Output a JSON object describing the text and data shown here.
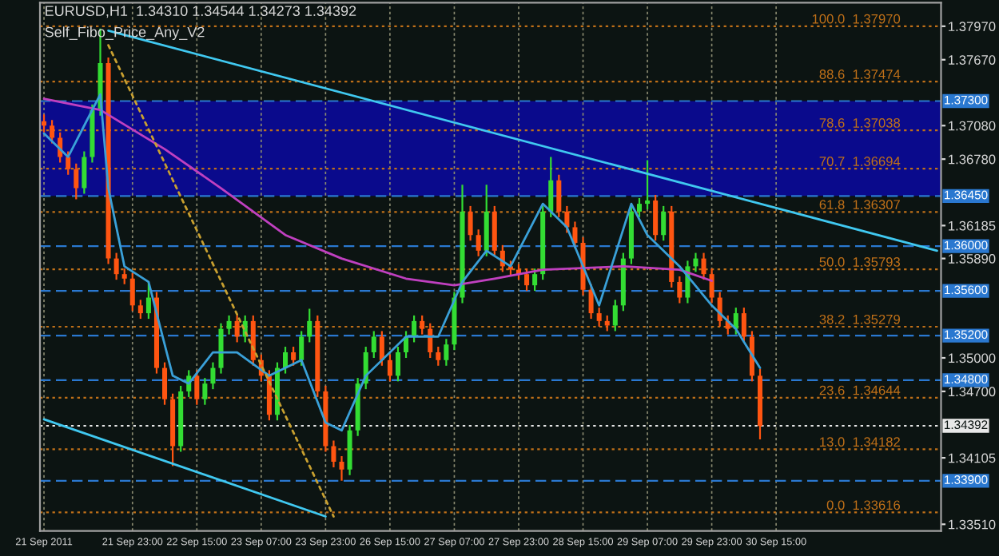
{
  "chart_data": {
    "type": "candlestick",
    "title": "EURUSD,H1  1.34310 1.34544 1.34273 1.34392",
    "subtitle": "Self_Fibo_Price_Any_V2",
    "categories": [
      "21 Sep 2011",
      null,
      null,
      null,
      null,
      null,
      null,
      null,
      null,
      null,
      null,
      "21 Sep 23:00",
      null,
      null,
      null,
      null,
      null,
      null,
      null,
      "22 Sep 15:00",
      null,
      null,
      null,
      null,
      null,
      null,
      null,
      "23 Sep 07:00",
      null,
      null,
      null,
      null,
      null,
      null,
      null,
      "23 Sep 23:00",
      null,
      null,
      null,
      null,
      null,
      null,
      null,
      "26 Sep 15:00",
      null,
      null,
      null,
      null,
      null,
      null,
      null,
      "27 Sep 07:00",
      null,
      null,
      null,
      null,
      null,
      null,
      null,
      "27 Sep 23:00",
      null,
      null,
      null,
      null,
      null,
      null,
      null,
      "28 Sep 15:00",
      null,
      null,
      null,
      null,
      null,
      null,
      null,
      "29 Sep 07:00",
      null,
      null,
      null,
      null,
      null,
      null,
      null,
      "29 Sep 23:00",
      null,
      null,
      null,
      null,
      null,
      null,
      null,
      "30 Sep 15:00",
      null,
      null,
      null,
      null,
      null,
      null,
      null,
      null,
      null,
      null,
      null,
      null,
      null,
      null,
      null,
      null,
      null,
      null,
      null,
      null
    ],
    "ohlc": [
      [
        1.3712,
        1.3718,
        1.3702,
        1.3708
      ],
      [
        1.3708,
        1.3713,
        1.3692,
        1.3697
      ],
      [
        1.3697,
        1.3702,
        1.3675,
        1.368
      ],
      [
        1.368,
        1.3685,
        1.3664,
        1.3669
      ],
      [
        1.3669,
        1.3674,
        1.3642,
        1.3652
      ],
      [
        1.3652,
        1.3685,
        1.3647,
        1.368
      ],
      [
        1.368,
        1.3727,
        1.3675,
        1.3722
      ],
      [
        1.3722,
        1.3795,
        1.3717,
        1.3764
      ],
      [
        1.3764,
        1.3769,
        1.3584,
        1.3589
      ],
      [
        1.3589,
        1.3594,
        1.357,
        1.3575
      ],
      [
        1.3575,
        1.358,
        1.3566,
        1.3571
      ],
      [
        1.3571,
        1.3576,
        1.3542,
        1.3547
      ],
      [
        1.3547,
        1.3552,
        1.3535,
        1.354
      ],
      [
        1.354,
        1.3568,
        1.3535,
        1.3554
      ],
      [
        1.3554,
        1.3559,
        1.3486,
        1.3491
      ],
      [
        1.3491,
        1.3496,
        1.3458,
        1.3463
      ],
      [
        1.3463,
        1.3468,
        1.3403,
        1.3421
      ],
      [
        1.3421,
        1.3475,
        1.3416,
        1.347
      ],
      [
        1.347,
        1.3489,
        1.3465,
        1.3484
      ],
      [
        1.3484,
        1.3489,
        1.3458,
        1.3463
      ],
      [
        1.3463,
        1.3482,
        1.3458,
        1.3477
      ],
      [
        1.3477,
        1.3496,
        1.3472,
        1.3491
      ],
      [
        1.3491,
        1.3531,
        1.3486,
        1.3526
      ],
      [
        1.3526,
        1.3538,
        1.3521,
        1.3533
      ],
      [
        1.3533,
        1.3538,
        1.3514,
        1.3519
      ],
      [
        1.3519,
        1.3538,
        1.3514,
        1.3533
      ],
      [
        1.3533,
        1.3538,
        1.3493,
        1.3498
      ],
      [
        1.3498,
        1.3503,
        1.3479,
        1.3484
      ],
      [
        1.3484,
        1.3489,
        1.3444,
        1.3449
      ],
      [
        1.3449,
        1.3496,
        1.3444,
        1.3491
      ],
      [
        1.3491,
        1.351,
        1.3486,
        1.3505
      ],
      [
        1.3505,
        1.351,
        1.3493,
        1.3498
      ],
      [
        1.3498,
        1.3524,
        1.3493,
        1.3519
      ],
      [
        1.3519,
        1.3544,
        1.3514,
        1.3533
      ],
      [
        1.3533,
        1.3538,
        1.3465,
        1.347
      ],
      [
        1.347,
        1.3475,
        1.3416,
        1.3421
      ],
      [
        1.3421,
        1.3426,
        1.3402,
        1.3407
      ],
      [
        1.3407,
        1.3412,
        1.339,
        1.34
      ],
      [
        1.34,
        1.344,
        1.3395,
        1.3435
      ],
      [
        1.3435,
        1.3482,
        1.343,
        1.3477
      ],
      [
        1.3477,
        1.351,
        1.3472,
        1.3505
      ],
      [
        1.3505,
        1.3524,
        1.35,
        1.3519
      ],
      [
        1.3519,
        1.3524,
        1.3493,
        1.3498
      ],
      [
        1.3498,
        1.3503,
        1.3479,
        1.3484
      ],
      [
        1.3484,
        1.351,
        1.3479,
        1.3505
      ],
      [
        1.3505,
        1.3524,
        1.35,
        1.3519
      ],
      [
        1.3519,
        1.3538,
        1.3514,
        1.3533
      ],
      [
        1.3533,
        1.3538,
        1.3521,
        1.3526
      ],
      [
        1.3526,
        1.3531,
        1.35,
        1.3505
      ],
      [
        1.3505,
        1.351,
        1.3493,
        1.3498
      ],
      [
        1.3498,
        1.3517,
        1.3493,
        1.3512
      ],
      [
        1.3512,
        1.3559,
        1.3507,
        1.3554
      ],
      [
        1.3554,
        1.3655,
        1.3549,
        1.3631
      ],
      [
        1.3631,
        1.3636,
        1.3605,
        1.361
      ],
      [
        1.361,
        1.3615,
        1.3591,
        1.3596
      ],
      [
        1.3596,
        1.3655,
        1.3591,
        1.3631
      ],
      [
        1.3631,
        1.3636,
        1.3591,
        1.3596
      ],
      [
        1.3596,
        1.3601,
        1.3577,
        1.3582
      ],
      [
        1.3582,
        1.3587,
        1.3574,
        1.3579
      ],
      [
        1.3579,
        1.3584,
        1.357,
        1.3575
      ],
      [
        1.3575,
        1.358,
        1.356,
        1.3565
      ],
      [
        1.3565,
        1.358,
        1.356,
        1.3575
      ],
      [
        1.3575,
        1.3636,
        1.357,
        1.3631
      ],
      [
        1.3631,
        1.368,
        1.3626,
        1.3659
      ],
      [
        1.3659,
        1.3664,
        1.3626,
        1.3631
      ],
      [
        1.3631,
        1.3636,
        1.3612,
        1.3617
      ],
      [
        1.3617,
        1.3622,
        1.3598,
        1.3603
      ],
      [
        1.3603,
        1.3608,
        1.3556,
        1.3561
      ],
      [
        1.3561,
        1.3566,
        1.3535,
        1.354
      ],
      [
        1.354,
        1.3545,
        1.3528,
        1.3533
      ],
      [
        1.3533,
        1.3538,
        1.3524,
        1.3529
      ],
      [
        1.3529,
        1.3552,
        1.3524,
        1.3547
      ],
      [
        1.3547,
        1.3594,
        1.3542,
        1.3589
      ],
      [
        1.3589,
        1.3636,
        1.3584,
        1.3631
      ],
      [
        1.3631,
        1.3643,
        1.3626,
        1.3638
      ],
      [
        1.3638,
        1.3677,
        1.3633,
        1.3641
      ],
      [
        1.3641,
        1.3646,
        1.3605,
        1.361
      ],
      [
        1.361,
        1.3636,
        1.3605,
        1.3631
      ],
      [
        1.3631,
        1.3636,
        1.3563,
        1.3568
      ],
      [
        1.3568,
        1.3573,
        1.3549,
        1.3554
      ],
      [
        1.3554,
        1.3587,
        1.3549,
        1.3582
      ],
      [
        1.3582,
        1.3594,
        1.3577,
        1.3589
      ],
      [
        1.3589,
        1.3594,
        1.357,
        1.3575
      ],
      [
        1.3575,
        1.358,
        1.3549,
        1.3554
      ],
      [
        1.3554,
        1.3559,
        1.3528,
        1.3533
      ],
      [
        1.3533,
        1.3538,
        1.3521,
        1.3526
      ],
      [
        1.3526,
        1.3545,
        1.3521,
        1.354
      ],
      [
        1.354,
        1.3545,
        1.3514,
        1.3519
      ],
      [
        1.3519,
        1.3524,
        1.3479,
        1.3484
      ],
      [
        1.3484,
        1.349,
        1.3427,
        1.3439
      ],
      null,
      null,
      null,
      null,
      null,
      null,
      null,
      null,
      null,
      null,
      null,
      null,
      null,
      null,
      null,
      null,
      null,
      null,
      null,
      null,
      null,
      null
    ],
    "colors": [
      "#ff5511",
      "#ff5511",
      "#ff5511",
      "#ff5511",
      "#ff5511",
      "#33dd33",
      "#33dd33",
      "#33dd33",
      "#ff5511",
      "#ff5511",
      "#ff5511",
      "#ff5511",
      "#ff5511",
      "#33dd33",
      "#ff5511",
      "#ff5511",
      "#ff5511",
      "#33dd33",
      "#33dd33",
      "#ff5511",
      "#33dd33",
      "#33dd33",
      "#33dd33",
      "#33dd33",
      "#ff5511",
      "#33dd33",
      "#ff5511",
      "#ff5511",
      "#ff5511",
      "#33dd33",
      "#33dd33",
      "#ff5511",
      "#33dd33",
      "#33dd33",
      "#ff5511",
      "#ff5511",
      "#ff5511",
      "#ff5511",
      "#33dd33",
      "#33dd33",
      "#33dd33",
      "#33dd33",
      "#ff5511",
      "#ff5511",
      "#33dd33",
      "#33dd33",
      "#33dd33",
      "#ff5511",
      "#ff5511",
      "#ff5511",
      "#33dd33",
      "#33dd33",
      "#33dd33",
      "#ff5511",
      "#ff5511",
      "#33dd33",
      "#ff5511",
      "#ff5511",
      "#ff5511",
      "#ff5511",
      "#ff5511",
      "#33dd33",
      "#33dd33",
      "#33dd33",
      "#ff5511",
      "#ff5511",
      "#ff5511",
      "#ff5511",
      "#ff5511",
      "#ff5511",
      "#ff5511",
      "#33dd33",
      "#33dd33",
      "#33dd33",
      "#33dd33",
      "#33dd33",
      "#ff5511",
      "#33dd33",
      "#ff5511",
      "#ff5511",
      "#33dd33",
      "#33dd33",
      "#ff5511",
      "#ff5511",
      "#ff5511",
      "#ff5511",
      "#33dd33",
      "#ff5511",
      "#ff5511",
      "#ff5511",
      null,
      null,
      null,
      null,
      null,
      null,
      null,
      null,
      null,
      null,
      null,
      null,
      null,
      null,
      null,
      null,
      null,
      null,
      null,
      null,
      null,
      null
    ],
    "ylim": [
      1.3345,
      1.3818
    ],
    "yticks": [
      {
        "value": 1.3797,
        "label": "1.37970"
      },
      {
        "value": 1.3767,
        "label": "1.37670"
      },
      {
        "value": 1.3708,
        "label": "1.37080"
      },
      {
        "value": 1.3678,
        "label": "1.36780"
      },
      {
        "value": 1.36185,
        "label": "1.36185"
      },
      {
        "value": 1.3589,
        "label": "1.35890"
      },
      {
        "value": 1.35,
        "label": "1.35000"
      },
      {
        "value": 1.347,
        "label": "1.34700"
      },
      {
        "value": 1.34105,
        "label": "1.34105"
      },
      {
        "value": 1.3351,
        "label": "1.33510"
      }
    ],
    "grid": "x",
    "series": [
      {
        "type": "line",
        "color": "#c040c0",
        "line_style": "solid",
        "values": [
          1.3732,
          null,
          null,
          null,
          null,
          null,
          null,
          1.3722,
          null,
          null,
          null,
          null,
          null,
          null,
          null,
          1.3687,
          null,
          null,
          null,
          null,
          null,
          null,
          1.3652,
          null,
          null,
          null,
          null,
          null,
          null,
          null,
          1.361,
          null,
          null,
          null,
          null,
          null,
          null,
          1.3589,
          null,
          null,
          null,
          null,
          null,
          null,
          null,
          1.3571,
          null,
          null,
          null,
          null,
          null,
          1.3565,
          null,
          null,
          null,
          null,
          1.3571,
          null,
          null,
          null,
          null,
          null,
          1.3579,
          null,
          null,
          null,
          null,
          null,
          null,
          null,
          null,
          null,
          1.3582,
          null,
          null,
          null,
          null,
          null,
          null,
          1.3579,
          null,
          null,
          null,
          1.3569,
          null,
          null,
          null,
          null,
          null,
          null,
          null,
          null,
          null,
          null,
          null,
          null,
          null,
          null,
          null,
          null,
          null,
          null,
          null,
          null,
          null,
          null,
          null,
          null,
          null,
          null,
          null,
          null
        ]
      },
      {
        "type": "line",
        "color": "#3aa0d8",
        "line_style": "solid",
        "values": [
          1.3701,
          null,
          null,
          1.368,
          null,
          1.3708,
          null,
          1.3736,
          1.3652,
          null,
          1.3582,
          null,
          null,
          1.3568,
          null,
          null,
          1.3484,
          null,
          1.3477,
          null,
          null,
          1.3505,
          null,
          null,
          1.3505,
          null,
          null,
          null,
          1.3484,
          null,
          null,
          null,
          1.3498,
          null,
          null,
          1.3442,
          null,
          1.3435,
          null,
          null,
          1.3484,
          null,
          null,
          null,
          null,
          1.3519,
          null,
          null,
          null,
          1.3519,
          null,
          null,
          1.3568,
          null,
          null,
          1.3596,
          null,
          null,
          1.3582,
          null,
          null,
          null,
          1.3638,
          null,
          null,
          1.3617,
          null,
          null,
          null,
          1.3547,
          null,
          null,
          null,
          1.3638,
          null,
          1.361,
          null,
          null,
          null,
          1.3582,
          null,
          null,
          null,
          1.3547,
          null,
          null,
          1.3526,
          null,
          null,
          1.3491,
          null,
          null,
          null,
          null,
          null,
          null,
          null,
          null,
          null,
          null,
          null,
          null,
          null,
          null,
          null,
          null,
          null,
          null,
          null,
          null,
          null,
          null
        ]
      },
      {
        "type": "line",
        "color": "#40c8f0",
        "line_style": "solid",
        "values": [
          null,
          null,
          null,
          null,
          null,
          null,
          null,
          null,
          1.3793,
          null,
          null,
          null,
          null,
          null,
          null,
          null,
          null,
          null,
          null,
          null,
          null,
          null,
          null,
          null,
          null,
          null,
          null,
          null,
          null,
          null,
          null,
          null,
          null,
          null,
          null,
          null,
          null,
          null,
          null,
          null,
          null,
          null,
          null,
          null,
          null,
          null,
          null,
          null,
          null,
          null,
          null,
          null,
          null,
          null,
          null,
          null,
          null,
          null,
          null,
          null,
          null,
          null,
          null,
          null,
          null,
          null,
          null,
          null,
          null,
          null,
          null,
          null,
          null,
          null,
          null,
          null,
          null,
          null,
          null,
          null,
          null,
          null,
          null,
          null,
          null,
          null,
          null,
          null,
          null,
          null,
          null,
          null,
          null,
          null,
          null,
          null,
          null,
          null,
          null,
          null,
          null,
          null,
          null,
          null,
          null,
          null,
          null,
          null,
          null,
          null,
          null,
          1.3596
        ]
      },
      {
        "type": "line",
        "color": "#40c8f0",
        "line_style": "solid",
        "values": [
          1.3445,
          null,
          null,
          null,
          null,
          null,
          null,
          null,
          null,
          null,
          null,
          null,
          null,
          null,
          null,
          null,
          null,
          null,
          null,
          null,
          null,
          null,
          null,
          null,
          null,
          null,
          null,
          null,
          null,
          null,
          null,
          null,
          null,
          null,
          null,
          1.3358,
          null,
          null,
          null,
          null,
          null,
          null,
          null,
          null,
          null,
          null,
          null,
          null,
          null,
          null,
          null,
          null,
          null,
          null,
          null,
          null,
          null,
          null,
          null,
          null,
          null,
          null,
          null,
          null,
          null,
          null,
          null,
          null,
          null,
          null,
          null,
          null,
          null,
          null,
          null,
          null,
          null,
          null,
          null,
          null,
          null,
          null,
          null,
          null,
          null,
          null,
          null,
          null,
          null,
          null,
          null,
          null,
          null,
          null,
          null,
          null,
          null,
          null,
          null,
          null,
          null,
          null,
          null,
          null,
          null,
          null,
          null,
          null,
          null,
          null,
          null,
          null
        ]
      },
      {
        "type": "line",
        "color": "#c8a030",
        "line_style": "dotted",
        "values": [
          null,
          null,
          null,
          null,
          null,
          null,
          null,
          null,
          1.378,
          null,
          null,
          null,
          null,
          null,
          null,
          null,
          null,
          null,
          null,
          null,
          null,
          null,
          null,
          null,
          null,
          null,
          null,
          null,
          null,
          null,
          null,
          null,
          null,
          null,
          null,
          null,
          1.3358,
          null,
          null,
          null,
          null,
          null,
          null,
          null,
          null,
          null,
          null,
          null,
          null,
          null,
          null,
          null,
          null,
          null,
          null,
          null,
          null,
          null,
          null,
          null,
          null,
          null,
          null,
          null,
          null,
          null,
          null,
          null,
          null,
          null,
          null,
          null,
          null,
          null,
          null,
          null,
          null,
          null,
          null,
          null,
          null,
          null,
          null,
          null,
          null,
          null,
          null,
          null,
          null,
          null,
          null,
          null,
          null,
          null,
          null,
          null,
          null,
          null,
          null,
          null,
          null,
          null,
          null,
          null,
          null,
          null,
          null,
          null,
          null,
          null,
          null,
          null
        ]
      }
    ],
    "bands": [
      {
        "axis": "y",
        "from": 1.3645,
        "to": 1.373,
        "color": "#0a0a8c"
      }
    ],
    "ref_lines": [
      {
        "axis": "y",
        "value": 1.3797,
        "label": "100.0  1.37970",
        "color": "#c07018",
        "line_style": "dotted"
      },
      {
        "axis": "y",
        "value": 1.37474,
        "label": "88.6  1.37474",
        "color": "#c07018",
        "line_style": "dotted"
      },
      {
        "axis": "y",
        "value": 1.37038,
        "label": "78.6  1.37038",
        "color": "#c07018",
        "line_style": "dotted"
      },
      {
        "axis": "y",
        "value": 1.36694,
        "label": "70.7  1.36694",
        "color": "#c07018",
        "line_style": "dotted"
      },
      {
        "axis": "y",
        "value": 1.36307,
        "label": "61.8  1.36307",
        "color": "#c07018",
        "line_style": "dotted"
      },
      {
        "axis": "y",
        "value": 1.35793,
        "label": "50.0  1.35793",
        "color": "#c07018",
        "line_style": "dotted"
      },
      {
        "axis": "y",
        "value": 1.35279,
        "label": "38.2  1.35279",
        "color": "#c07018",
        "line_style": "dotted"
      },
      {
        "axis": "y",
        "value": 1.34644,
        "label": "23.6  1.34644",
        "color": "#c07018",
        "line_style": "dotted"
      },
      {
        "axis": "y",
        "value": 1.34182,
        "label": "13.0  1.34182",
        "color": "#c07018",
        "line_style": "dotted"
      },
      {
        "axis": "y",
        "value": 1.33616,
        "label": "0.0  1.33616",
        "color": "#c07018",
        "line_style": "dotted"
      },
      {
        "axis": "y",
        "value": 1.373,
        "label": "1.37300",
        "color": "#2a78d0",
        "line_style": "dashed"
      },
      {
        "axis": "y",
        "value": 1.3645,
        "label": "1.36450",
        "color": "#2a78d0",
        "line_style": "dashed"
      },
      {
        "axis": "y",
        "value": 1.36,
        "label": "1.36000",
        "color": "#2a78d0",
        "line_style": "dashed"
      },
      {
        "axis": "y",
        "value": 1.356,
        "label": "1.35600",
        "color": "#2a78d0",
        "line_style": "dashed"
      },
      {
        "axis": "y",
        "value": 1.352,
        "label": "1.35200",
        "color": "#2a78d0",
        "line_style": "dashed"
      },
      {
        "axis": "y",
        "value": 1.348,
        "label": "1.34800",
        "color": "#2a78d0",
        "line_style": "dashed"
      },
      {
        "axis": "y",
        "value": 1.339,
        "label": "1.33900",
        "color": "#2a78d0",
        "line_style": "dashed"
      },
      {
        "axis": "y",
        "value": 1.34392,
        "label": "1.34392",
        "color": "#e8e8e8",
        "line_style": "dotted"
      }
    ]
  }
}
